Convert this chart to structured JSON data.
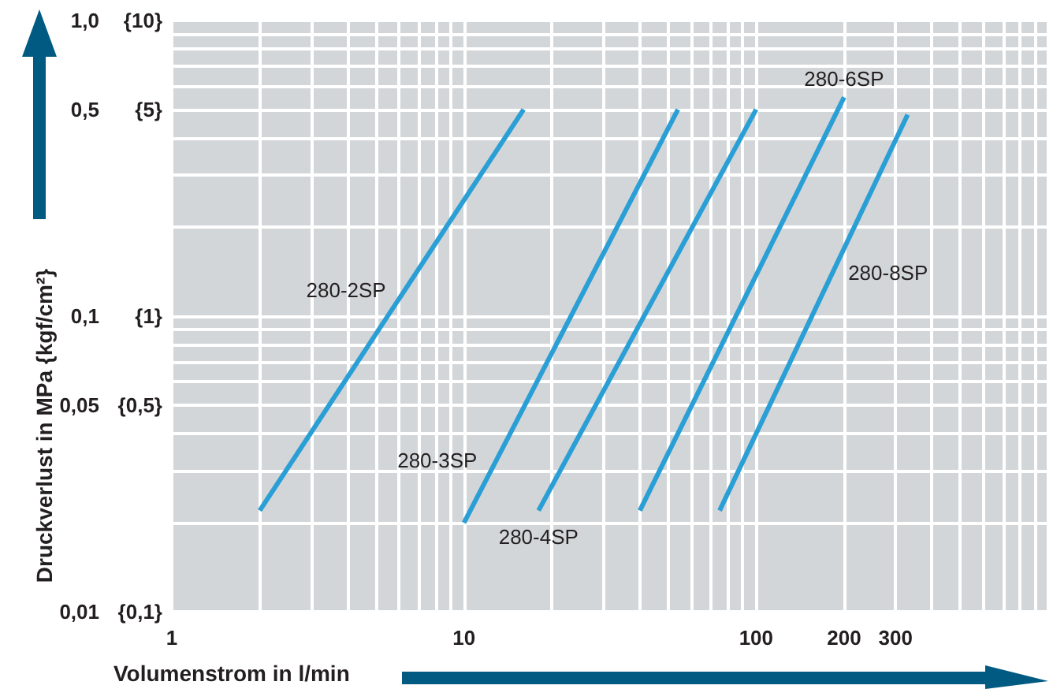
{
  "chart_data": {
    "type": "line",
    "xlabel": "Volumenstrom in l/min",
    "ylabel": "Druckverlust in MPa {kgf/cm²}",
    "log": "xy",
    "grid": true,
    "legend": false,
    "marker": "none",
    "line_style": "solid",
    "xlim": [
      1,
      1000
    ],
    "xticks": [
      1,
      10,
      100,
      200,
      300
    ],
    "ylim": [
      0.01,
      1
    ],
    "yticks": [
      {
        "value": 0.01,
        "label": "0,01"
      },
      {
        "value": 0.05,
        "label": "0,05"
      },
      {
        "value": 0.1,
        "label": "0,1"
      },
      {
        "value": 0.5,
        "label": "0,5"
      },
      {
        "value": 1,
        "label": "1,0"
      }
    ],
    "annotations": [
      "{0,1}",
      "{0,5}",
      "{1}",
      "{5}",
      "{10}"
    ],
    "series": [
      {
        "name": "280-2SP",
        "color": "#2a9fd6",
        "x": [
          2,
          16
        ],
        "values": [
          0.022,
          0.5
        ]
      },
      {
        "name": "280-3SP",
        "color": "#2a9fd6",
        "x": [
          10,
          54
        ],
        "values": [
          0.02,
          0.5
        ]
      },
      {
        "name": "280-4SP",
        "color": "#2a9fd6",
        "x": [
          18,
          100
        ],
        "values": [
          0.022,
          0.5
        ]
      },
      {
        "name": "280-6SP",
        "color": "#2a9fd6",
        "x": [
          40,
          200
        ],
        "values": [
          0.022,
          0.55
        ]
      },
      {
        "name": "280-8SP",
        "color": "#2a9fd6",
        "x": [
          75,
          330
        ],
        "values": [
          0.022,
          0.48
        ]
      }
    ]
  }
}
